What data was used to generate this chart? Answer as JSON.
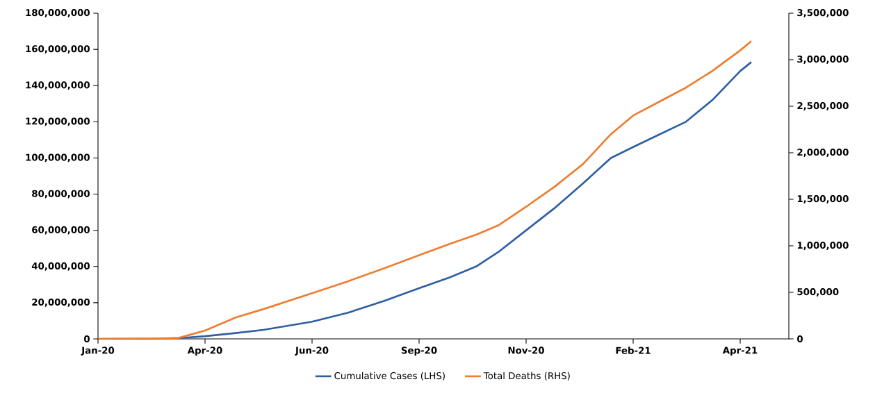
{
  "chart_data": {
    "type": "line",
    "x": [
      "2020-01-22",
      "2020-03-01",
      "2020-03-20",
      "2020-04-08",
      "2020-04-30",
      "2020-05-20",
      "2020-06-24",
      "2020-07-20",
      "2020-08-15",
      "2020-09-09",
      "2020-10-01",
      "2020-10-20",
      "2020-11-05",
      "2020-11-25",
      "2020-12-15",
      "2021-01-05",
      "2021-01-25",
      "2021-02-10",
      "2021-03-01",
      "2021-03-20",
      "2021-04-08",
      "2021-04-28",
      "2021-05-06"
    ],
    "series": [
      {
        "name": "Cumulative Cases (LHS)",
        "color": "#2e5fa3",
        "values": [
          0,
          100000,
          400000,
          1500000,
          3200000,
          5000000,
          9500000,
          14500000,
          21000000,
          28000000,
          34000000,
          40000000,
          48000000,
          60000000,
          72000000,
          86000000,
          100000000,
          106000000,
          113000000,
          120000000,
          132000000,
          148000000,
          153000000
        ]
      },
      {
        "name": "Total Deaths (RHS)",
        "color": "#ed7d31",
        "axis": "y2",
        "values": [
          0,
          3000,
          10000,
          90000,
          230000,
          320000,
          490000,
          620000,
          760000,
          900000,
          1020000,
          1120000,
          1220000,
          1420000,
          1630000,
          1880000,
          2200000,
          2400000,
          2550000,
          2700000,
          2880000,
          3100000,
          3200000
        ]
      }
    ],
    "xlim": [
      "2020-01-22",
      "2021-06-02"
    ],
    "xticks": [
      {
        "value": "2020-01-22",
        "label": "Jan-20"
      },
      {
        "value": "2020-04-08",
        "label": "Apr-20"
      },
      {
        "value": "2020-06-24",
        "label": "Jun-20"
      },
      {
        "value": "2020-09-09",
        "label": "Sep-20"
      },
      {
        "value": "2020-11-25",
        "label": "Nov-20"
      },
      {
        "value": "2021-02-10",
        "label": "Feb-21"
      },
      {
        "value": "2021-04-28",
        "label": "Apr-21"
      }
    ],
    "ylim": [
      0,
      180000000
    ],
    "yticks": [
      {
        "value": 0,
        "label": "0"
      },
      {
        "value": 20000000,
        "label": "20,000,000"
      },
      {
        "value": 40000000,
        "label": "40,000,000"
      },
      {
        "value": 60000000,
        "label": "60,000,000"
      },
      {
        "value": 80000000,
        "label": "80,000,000"
      },
      {
        "value": 100000000,
        "label": "100,000,000"
      },
      {
        "value": 120000000,
        "label": "120,000,000"
      },
      {
        "value": 140000000,
        "label": "140,000,000"
      },
      {
        "value": 160000000,
        "label": "160,000,000"
      },
      {
        "value": 180000000,
        "label": "180,000,000"
      }
    ],
    "y2lim": [
      0,
      3500000
    ],
    "y2ticks": [
      {
        "value": 0,
        "label": "0"
      },
      {
        "value": 500000,
        "label": "500,000"
      },
      {
        "value": 1000000,
        "label": "1,000,000"
      },
      {
        "value": 1500000,
        "label": "1,500,000"
      },
      {
        "value": 2000000,
        "label": "2,000,000"
      },
      {
        "value": 2500000,
        "label": "2,500,000"
      },
      {
        "value": 3000000,
        "label": "3,000,000"
      },
      {
        "value": 3500000,
        "label": "3,500,000"
      }
    ],
    "legend": "bottom"
  }
}
